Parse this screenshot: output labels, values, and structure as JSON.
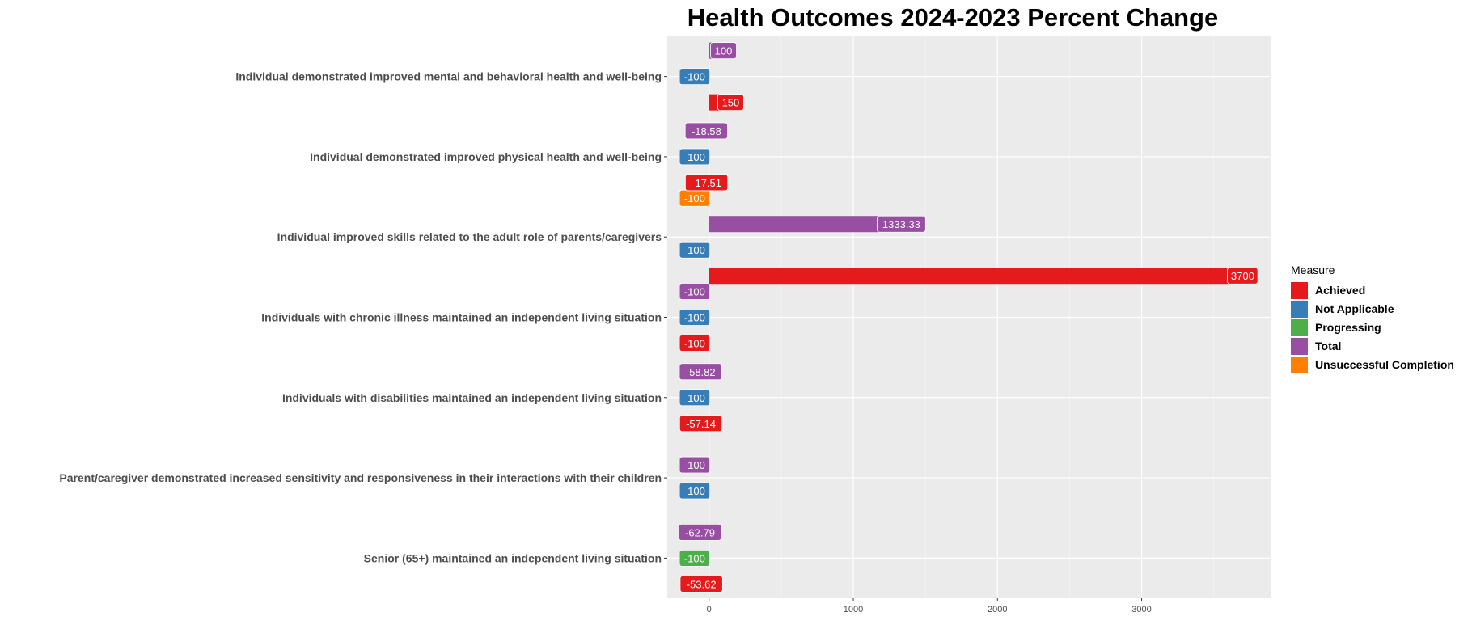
{
  "chart_data": {
    "type": "bar",
    "orientation": "horizontal",
    "title": "Health Outcomes 2024-2023 Percent Change",
    "xlabel": "",
    "ylabel": "",
    "xlim": [
      -290,
      3900
    ],
    "x_ticks": [
      0,
      1000,
      2000,
      3000
    ],
    "grid": true,
    "legend_title": "Measure",
    "legend_position": "right",
    "series": [
      {
        "name": "Achieved",
        "color": "#E41A1C"
      },
      {
        "name": "Not Applicable",
        "color": "#377EB8"
      },
      {
        "name": "Progressing",
        "color": "#4DAF4A"
      },
      {
        "name": "Total",
        "color": "#984EA3"
      },
      {
        "name": "Unsuccessful Completion",
        "color": "#FF7F00"
      }
    ],
    "categories": [
      {
        "label": "Senior (65+) maintained an independent living situation",
        "bars": [
          {
            "series": "Total",
            "value": -62.79,
            "label": "-62.79"
          },
          {
            "series": "Progressing",
            "value": -100,
            "label": "-100"
          },
          {
            "series": "Achieved",
            "value": -53.62,
            "label": "-53.62"
          }
        ]
      },
      {
        "label": "Parent/caregiver demonstrated increased sensitivity and responsiveness in their interactions with their children",
        "bars": [
          {
            "series": "Total",
            "value": -100,
            "label": "-100"
          },
          {
            "series": "Not Applicable",
            "value": -100,
            "label": "-100"
          }
        ]
      },
      {
        "label": "Individuals with disabilities maintained an independent living situation",
        "bars": [
          {
            "series": "Total",
            "value": -58.82,
            "label": "-58.82"
          },
          {
            "series": "Not Applicable",
            "value": -100,
            "label": "-100"
          },
          {
            "series": "Achieved",
            "value": -57.14,
            "label": "-57.14"
          }
        ]
      },
      {
        "label": "Individuals with chronic illness maintained an independent living situation",
        "bars": [
          {
            "series": "Total",
            "value": -100,
            "label": "-100"
          },
          {
            "series": "Not Applicable",
            "value": -100,
            "label": "-100"
          },
          {
            "series": "Achieved",
            "value": -100,
            "label": "-100"
          }
        ]
      },
      {
        "label": "Individual improved skills related to the adult role of parents/caregivers",
        "bars": [
          {
            "series": "Unsuccessful Completion",
            "value": -100,
            "label": "-100"
          },
          {
            "series": "Total",
            "value": 1333.33,
            "label": "1333.33"
          },
          {
            "series": "Not Applicable",
            "value": -100,
            "label": "-100"
          },
          {
            "series": "Achieved",
            "value": 3700,
            "label": "3700"
          }
        ]
      },
      {
        "label": "Individual demonstrated improved physical health and well-being",
        "bars": [
          {
            "series": "Total",
            "value": -18.58,
            "label": "-18.58"
          },
          {
            "series": "Not Applicable",
            "value": -100,
            "label": "-100"
          },
          {
            "series": "Achieved",
            "value": -17.51,
            "label": "-17.51"
          }
        ]
      },
      {
        "label": "Individual demonstrated improved mental and behavioral health and well-being",
        "bars": [
          {
            "series": "Total",
            "value": 100,
            "label": "100"
          },
          {
            "series": "Not Applicable",
            "value": -100,
            "label": "-100"
          },
          {
            "series": "Achieved",
            "value": 150,
            "label": "150"
          }
        ]
      }
    ]
  }
}
